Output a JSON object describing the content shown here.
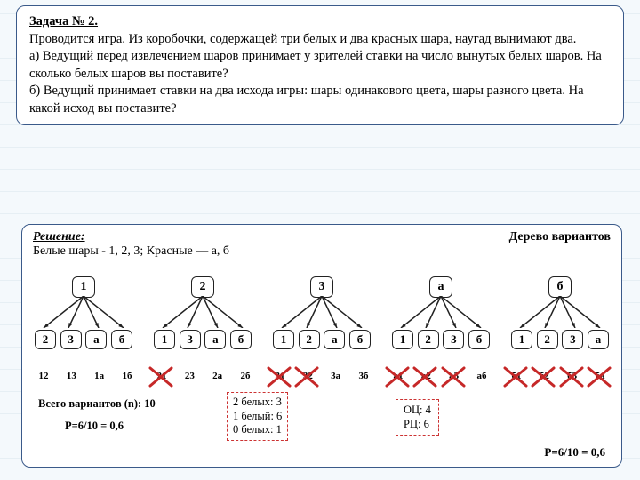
{
  "colors": {
    "border": "#3a5a8a",
    "cross": "#c62828",
    "dash": "#cc3333"
  },
  "problem": {
    "title": "Задача № 2.",
    "text_a": "Проводится игра. Из коробочки, содержащей три белых и два красных шара, наугад вынимают два.",
    "text_b": "а) Ведущий перед извлечением шаров принимает у зрителей ставки на число вынутых белых шаров. На сколько белых шаров вы поставите?",
    "text_c": "б) Ведущий принимает ставки на два исхода игры: шары одинакового цвета, шары разного цвета. На какой исход вы поставите?"
  },
  "solution": {
    "heading": "Решение:",
    "tree_label": "Дерево вариантов",
    "balls": "Белые шары - 1, 2, 3; Красные — а, б"
  },
  "trees": [
    {
      "root": "1",
      "children": [
        "2",
        "3",
        "а",
        "б"
      ]
    },
    {
      "root": "2",
      "children": [
        "1",
        "3",
        "а",
        "б"
      ]
    },
    {
      "root": "3",
      "children": [
        "1",
        "2",
        "а",
        "б"
      ]
    },
    {
      "root": "а",
      "children": [
        "1",
        "2",
        "3",
        "б"
      ]
    },
    {
      "root": "б",
      "children": [
        "1",
        "2",
        "3",
        "а"
      ]
    }
  ],
  "outcomes": [
    [
      {
        "l": "12",
        "x": false
      },
      {
        "l": "13",
        "x": false
      },
      {
        "l": "1а",
        "x": false
      },
      {
        "l": "1б",
        "x": false
      }
    ],
    [
      {
        "l": "21",
        "x": true
      },
      {
        "l": "23",
        "x": false
      },
      {
        "l": "2а",
        "x": false
      },
      {
        "l": "2б",
        "x": false
      }
    ],
    [
      {
        "l": "31",
        "x": true
      },
      {
        "l": "32",
        "x": true
      },
      {
        "l": "3а",
        "x": false
      },
      {
        "l": "3б",
        "x": false
      }
    ],
    [
      {
        "l": "а1",
        "x": true
      },
      {
        "l": "а2",
        "x": true
      },
      {
        "l": "а3",
        "x": true
      },
      {
        "l": "аб",
        "x": false
      }
    ],
    [
      {
        "l": "б1",
        "x": true
      },
      {
        "l": "б2",
        "x": true
      },
      {
        "l": "б3",
        "x": true
      },
      {
        "l": "ба",
        "x": true
      }
    ]
  ],
  "bottom": {
    "total": "Всего вариантов (n): 10",
    "prob1": "Р=6/10 = 0,6",
    "whites": [
      "2 белых: 3",
      "1 белый: 6",
      "0 белых: 1"
    ],
    "colors": [
      "ОЦ: 4",
      "РЦ: 6"
    ],
    "prob2": "Р=6/10 = 0,6"
  }
}
